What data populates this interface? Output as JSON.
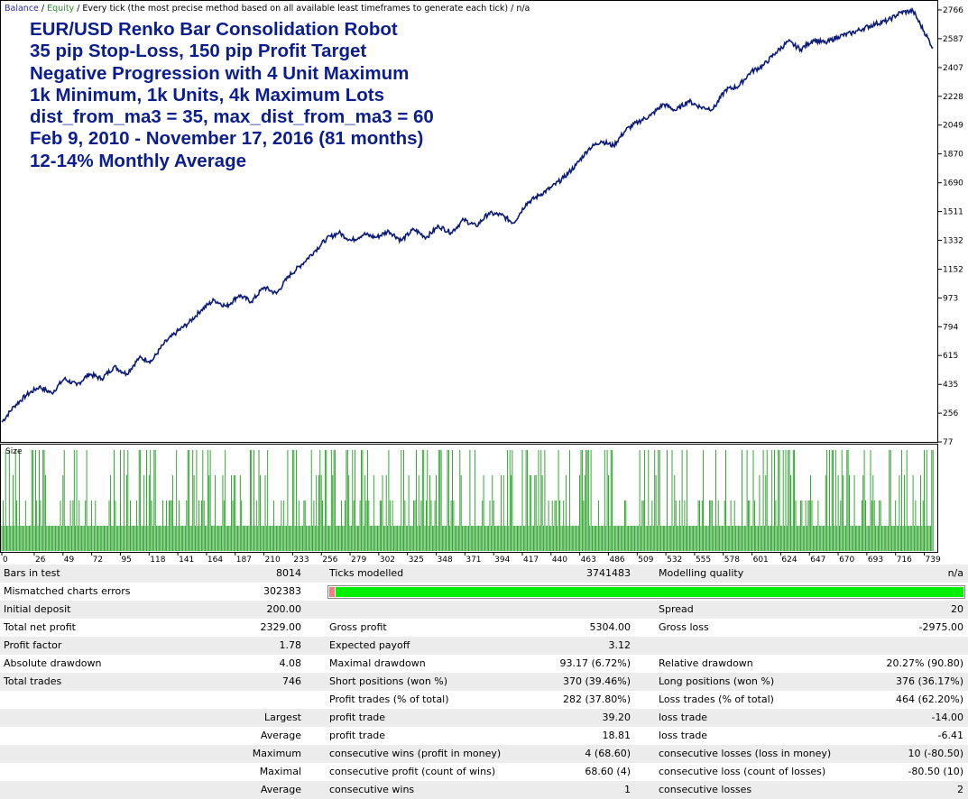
{
  "legend": {
    "balance": "Balance",
    "sep1": " / ",
    "equity": "Equity",
    "text": " / Every tick (the most precise method based on all available least timeframes to generate each tick) / n/a"
  },
  "title_lines": [
    "EUR/USD Renko Bar Consolidation Robot",
    "35 pip Stop-Loss, 150 pip Profit Target",
    "Negative Progression with 4 Unit Maximum",
    "1k Minimum, 1k Units, 4k Maximum Lots",
    "dist_from_ma3 = 35, max_dist_from_ma3 = 60",
    "Feb 9, 2010 - November 17, 2016 (81 months)",
    "12-14% Monthly Average"
  ],
  "colors": {
    "balance_line": "#0a1a78",
    "size_bars": "#1f9e1f",
    "equity_legend": "#2d8f2d",
    "title_text": "#0b1e8f",
    "progress_green": "#00ee00",
    "progress_red": "#f08080"
  },
  "chart_data": {
    "type": "line",
    "series": [
      {
        "name": "Balance",
        "x": [
          0,
          10,
          20,
          30,
          40,
          50,
          60,
          70,
          80,
          90,
          100,
          110,
          120,
          130,
          140,
          150,
          160,
          170,
          180,
          190,
          200,
          210,
          220,
          230,
          240,
          250,
          260,
          270,
          280,
          290,
          300,
          310,
          320,
          330,
          340,
          350,
          360,
          370,
          380,
          390,
          400,
          410,
          420,
          430,
          440,
          450,
          460,
          470,
          480,
          490,
          500,
          510,
          520,
          530,
          540,
          550,
          560,
          570,
          580,
          590,
          600,
          610,
          620,
          630,
          640,
          650,
          660,
          670,
          680,
          690,
          700,
          710,
          720,
          730,
          746
        ],
        "values": [
          200,
          300,
          370,
          420,
          380,
          470,
          430,
          500,
          470,
          545,
          500,
          600,
          580,
          690,
          760,
          820,
          900,
          960,
          920,
          990,
          950,
          1040,
          1000,
          1110,
          1180,
          1260,
          1340,
          1380,
          1330,
          1370,
          1350,
          1390,
          1330,
          1400,
          1350,
          1420,
          1380,
          1460,
          1420,
          1500,
          1490,
          1440,
          1560,
          1610,
          1660,
          1720,
          1800,
          1900,
          1950,
          1920,
          2020,
          2070,
          2110,
          2180,
          2140,
          2200,
          2160,
          2150,
          2270,
          2290,
          2380,
          2420,
          2500,
          2570,
          2520,
          2580,
          2560,
          2600,
          2620,
          2650,
          2680,
          2700,
          2750,
          2760,
          2529
        ]
      }
    ],
    "y_ticks": [
      2766,
      2587,
      2407,
      2228,
      2049,
      1870,
      1690,
      1511,
      1332,
      1152,
      973,
      794,
      615,
      435,
      256,
      77
    ],
    "x_ticks": [
      0,
      26,
      49,
      72,
      95,
      118,
      141,
      164,
      187,
      210,
      233,
      256,
      279,
      302,
      325,
      348,
      371,
      394,
      417,
      440,
      463,
      486,
      509,
      532,
      555,
      578,
      601,
      624,
      647,
      670,
      693,
      716,
      739
    ],
    "ylim": [
      77,
      2766
    ],
    "size_label": "Size",
    "size_levels": [
      1,
      2,
      3,
      4
    ]
  },
  "report_rows": [
    [
      [
        "Bars in test",
        "8014"
      ],
      [
        "Ticks modelled",
        "3741483"
      ],
      [
        "Modelling quality",
        "n/a"
      ]
    ],
    [
      [
        "Mismatched charts errors",
        "302383"
      ],
      [
        "__progress__",
        ""
      ],
      [
        "",
        ""
      ]
    ],
    [
      [
        "Initial deposit",
        "200.00"
      ],
      [
        "",
        ""
      ],
      [
        "Spread",
        "20"
      ]
    ],
    [
      [
        "Total net profit",
        "2329.00"
      ],
      [
        "Gross profit",
        "5304.00"
      ],
      [
        "Gross loss",
        "-2975.00"
      ]
    ],
    [
      [
        "Profit factor",
        "1.78"
      ],
      [
        "Expected payoff",
        "3.12"
      ],
      [
        "",
        ""
      ]
    ],
    [
      [
        "Absolute drawdown",
        "4.08"
      ],
      [
        "Maximal drawdown",
        "93.17 (6.72%)"
      ],
      [
        "Relative drawdown",
        "20.27% (90.80)"
      ]
    ],
    [
      [
        "Total trades",
        "746"
      ],
      [
        "Short positions (won %)",
        "370 (39.46%)"
      ],
      [
        "Long positions (won %)",
        "376 (36.17%)"
      ]
    ],
    [
      [
        "",
        ""
      ],
      [
        "Profit trades (% of total)",
        "282 (37.80%)"
      ],
      [
        "Loss trades (% of total)",
        "464 (62.20%)"
      ]
    ],
    [
      [
        "",
        "Largest"
      ],
      [
        "profit trade",
        "39.20"
      ],
      [
        "loss trade",
        "-14.00"
      ]
    ],
    [
      [
        "",
        "Average"
      ],
      [
        "profit trade",
        "18.81"
      ],
      [
        "loss trade",
        "-6.41"
      ]
    ],
    [
      [
        "",
        "Maximum"
      ],
      [
        "consecutive wins (profit in money)",
        "4 (68.60)"
      ],
      [
        "consecutive losses (loss in money)",
        "10 (-80.50)"
      ]
    ],
    [
      [
        "",
        "Maximal"
      ],
      [
        "consecutive profit (count of wins)",
        "68.60 (4)"
      ],
      [
        "consecutive loss (count of losses)",
        "-80.50 (10)"
      ]
    ],
    [
      [
        "",
        "Average"
      ],
      [
        "consecutive wins",
        "1"
      ],
      [
        "consecutive losses",
        "2"
      ]
    ]
  ]
}
